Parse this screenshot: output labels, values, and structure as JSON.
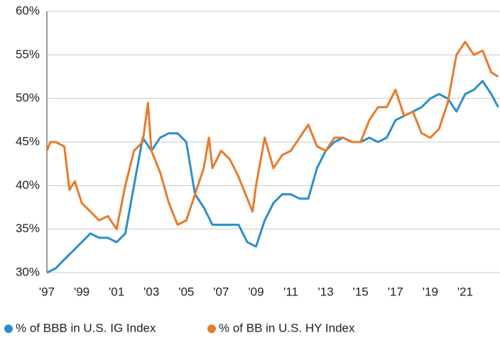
{
  "chart_data": {
    "type": "line",
    "xlim": [
      1997,
      2023
    ],
    "xticks": [
      {
        "value": 1997,
        "label": "'97"
      },
      {
        "value": 1999,
        "label": "'99"
      },
      {
        "value": 2001,
        "label": "'01"
      },
      {
        "value": 2003,
        "label": "'03"
      },
      {
        "value": 2005,
        "label": "'05"
      },
      {
        "value": 2007,
        "label": "'07"
      },
      {
        "value": 2009,
        "label": "'09"
      },
      {
        "value": 2011,
        "label": "'11"
      },
      {
        "value": 2013,
        "label": "'13"
      },
      {
        "value": 2015,
        "label": "'15"
      },
      {
        "value": 2017,
        "label": "'17"
      },
      {
        "value": 2019,
        "label": "'19"
      },
      {
        "value": 2021,
        "label": "'21"
      }
    ],
    "ylim": [
      30,
      60
    ],
    "yticks": [
      {
        "value": 30,
        "label": "30%"
      },
      {
        "value": 35,
        "label": "35%"
      },
      {
        "value": 40,
        "label": "40%"
      },
      {
        "value": 45,
        "label": "45%"
      },
      {
        "value": 50,
        "label": "50%"
      },
      {
        "value": 55,
        "label": "55%"
      },
      {
        "value": 60,
        "label": "60%"
      }
    ],
    "grid": true,
    "series": [
      {
        "name": "% of BBB in U.S. IG Index",
        "color": "#2a8fcc",
        "x": [
          1997.0,
          1997.5,
          1998.0,
          1998.5,
          1999.0,
          1999.5,
          2000.0,
          2000.5,
          2001.0,
          2001.5,
          2002.0,
          2002.5,
          2003.0,
          2003.5,
          2004.0,
          2004.5,
          2005.0,
          2005.5,
          2006.0,
          2006.5,
          2007.0,
          2007.5,
          2008.0,
          2008.5,
          2009.0,
          2009.5,
          2010.0,
          2010.5,
          2011.0,
          2011.5,
          2012.0,
          2012.5,
          2013.0,
          2013.5,
          2014.0,
          2014.5,
          2015.0,
          2015.5,
          2016.0,
          2016.5,
          2017.0,
          2017.5,
          2018.0,
          2018.5,
          2019.0,
          2019.5,
          2020.0,
          2020.5,
          2021.0,
          2021.5,
          2022.0,
          2022.5,
          2022.9
        ],
        "values": [
          30,
          30.5,
          31.5,
          32.5,
          33.5,
          34.5,
          34,
          34,
          33.5,
          34.5,
          40,
          45.5,
          44,
          45.5,
          46,
          46,
          45,
          39,
          37.5,
          35.5,
          35.5,
          35.5,
          35.5,
          33.5,
          33,
          36,
          38,
          39,
          39,
          38.5,
          38.5,
          42,
          44,
          45,
          45.5,
          45,
          45,
          45.5,
          45,
          45.5,
          47.5,
          48,
          48.5,
          49,
          50,
          50.5,
          50,
          48.5,
          50.5,
          51,
          52,
          50.5,
          49
        ]
      },
      {
        "name": "% of BB in U.S. HY Index",
        "color": "#e87a2b",
        "x": [
          1997.0,
          1997.2,
          1997.5,
          1998.0,
          1998.3,
          1998.6,
          1999.0,
          1999.5,
          2000.0,
          2000.5,
          2001.0,
          2001.5,
          2002.0,
          2002.5,
          2002.8,
          2003.0,
          2003.5,
          2004.0,
          2004.5,
          2005.0,
          2005.5,
          2006.0,
          2006.3,
          2006.5,
          2007.0,
          2007.5,
          2008.0,
          2008.5,
          2008.8,
          2009.0,
          2009.5,
          2010.0,
          2010.5,
          2011.0,
          2011.5,
          2012.0,
          2012.5,
          2013.0,
          2013.5,
          2014.0,
          2014.5,
          2015.0,
          2015.5,
          2016.0,
          2016.5,
          2017.0,
          2017.5,
          2018.0,
          2018.5,
          2019.0,
          2019.5,
          2020.0,
          2020.5,
          2021.0,
          2021.5,
          2022.0,
          2022.5,
          2022.9
        ],
        "values": [
          44,
          45,
          45,
          44.5,
          39.5,
          40.5,
          38,
          37,
          36,
          36.5,
          35,
          40,
          44,
          45,
          49.5,
          44,
          41.5,
          38,
          35.5,
          36,
          39,
          42,
          45.5,
          42,
          44,
          43,
          41,
          38.5,
          37,
          40,
          45.5,
          42,
          43.5,
          44,
          45.5,
          47,
          44.5,
          44,
          45.5,
          45.5,
          45,
          45,
          47.5,
          49,
          49,
          51,
          48,
          48.5,
          46,
          45.5,
          46.5,
          49.5,
          55,
          56.5,
          55,
          55.5,
          53,
          52.5
        ]
      }
    ]
  }
}
